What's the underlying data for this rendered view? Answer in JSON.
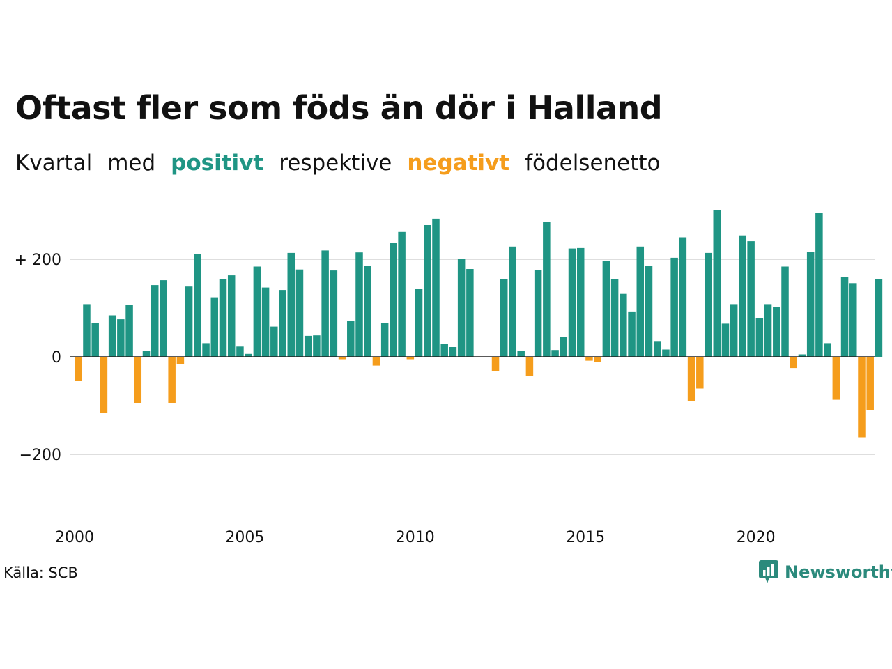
{
  "header": {
    "title": "Oftast fler som föds än dör i Halland",
    "subtitle_words": [
      "Kvartal",
      "med",
      "positivt",
      "respektive",
      "negativt",
      "födelsenetto"
    ]
  },
  "colors": {
    "positive": "#1f9584",
    "negative": "#f59d1c",
    "grid": "#dedede",
    "logo": "#2b8a7c"
  },
  "footer": {
    "source": "Källa: SCB",
    "logo_text": "Newsworthy",
    "logo_icon": "bar-chart-speech-bubble-icon"
  },
  "chart_data": {
    "type": "bar",
    "title": "Oftast fler som föds än dör i Halland",
    "subtitle": "Kvartal med positivt respektive negativt födelsenetto",
    "x_start": "2000 Q1",
    "x_ticks": [
      2000,
      2005,
      2010,
      2015,
      2020
    ],
    "y_ticks": [
      {
        "value": 200,
        "label": "+ 200"
      },
      {
        "value": 0,
        "label": "0"
      },
      {
        "value": -200,
        "label": "−200"
      }
    ],
    "ylim": [
      -330,
      305
    ],
    "values": [
      -50,
      108,
      70,
      -115,
      85,
      77,
      106,
      -95,
      12,
      147,
      157,
      -95,
      -15,
      144,
      211,
      28,
      122,
      160,
      167,
      21,
      6,
      185,
      142,
      62,
      137,
      213,
      179,
      43,
      44,
      218,
      177,
      -5,
      74,
      214,
      186,
      -18,
      69,
      233,
      256,
      -5,
      139,
      270,
      283,
      27,
      20,
      200,
      180,
      0,
      0,
      -30,
      159,
      226,
      12,
      -40,
      178,
      276,
      14,
      41,
      222,
      223,
      -8,
      -10,
      196,
      159,
      129,
      93,
      226,
      186,
      31,
      15,
      203,
      245,
      -90,
      -65,
      213,
      300,
      68,
      108,
      249,
      237,
      80,
      108,
      102,
      185,
      -23,
      5,
      215,
      295,
      28,
      -88,
      164,
      151,
      -165,
      -110,
      159
    ]
  }
}
